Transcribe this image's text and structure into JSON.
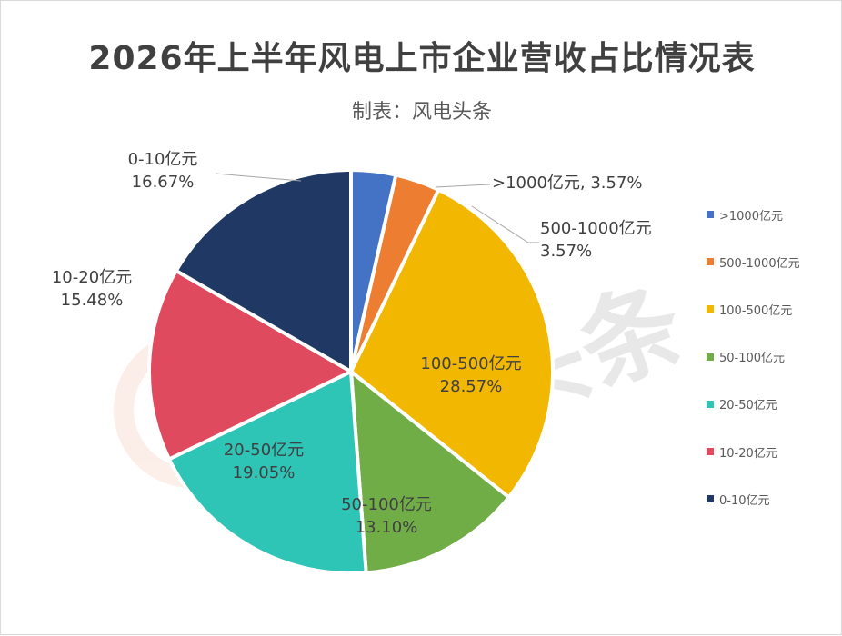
{
  "chart_data": {
    "type": "pie",
    "title": "2026年上半年风电上市企业营收占比情况表",
    "subtitle": "制表：风电头条",
    "categories": [
      ">1000亿元",
      "500-1000亿元",
      "100-500亿元",
      "50-100亿元",
      "20-50亿元",
      "10-20亿元",
      "0-10亿元"
    ],
    "values": [
      3.57,
      3.57,
      28.57,
      13.1,
      19.05,
      15.48,
      16.67
    ],
    "value_labels": [
      "3.57%",
      "3.57%",
      "28.57%",
      "13.10%",
      "19.05%",
      "15.48%",
      "16.67%"
    ],
    "colors": [
      "#4472c4",
      "#ed7d31",
      "#f2b700",
      "#70ad47",
      "#2ec4b6",
      "#e04a5f",
      "#203864"
    ],
    "legend_position": "right"
  },
  "watermark": {
    "text": "风电头条"
  }
}
